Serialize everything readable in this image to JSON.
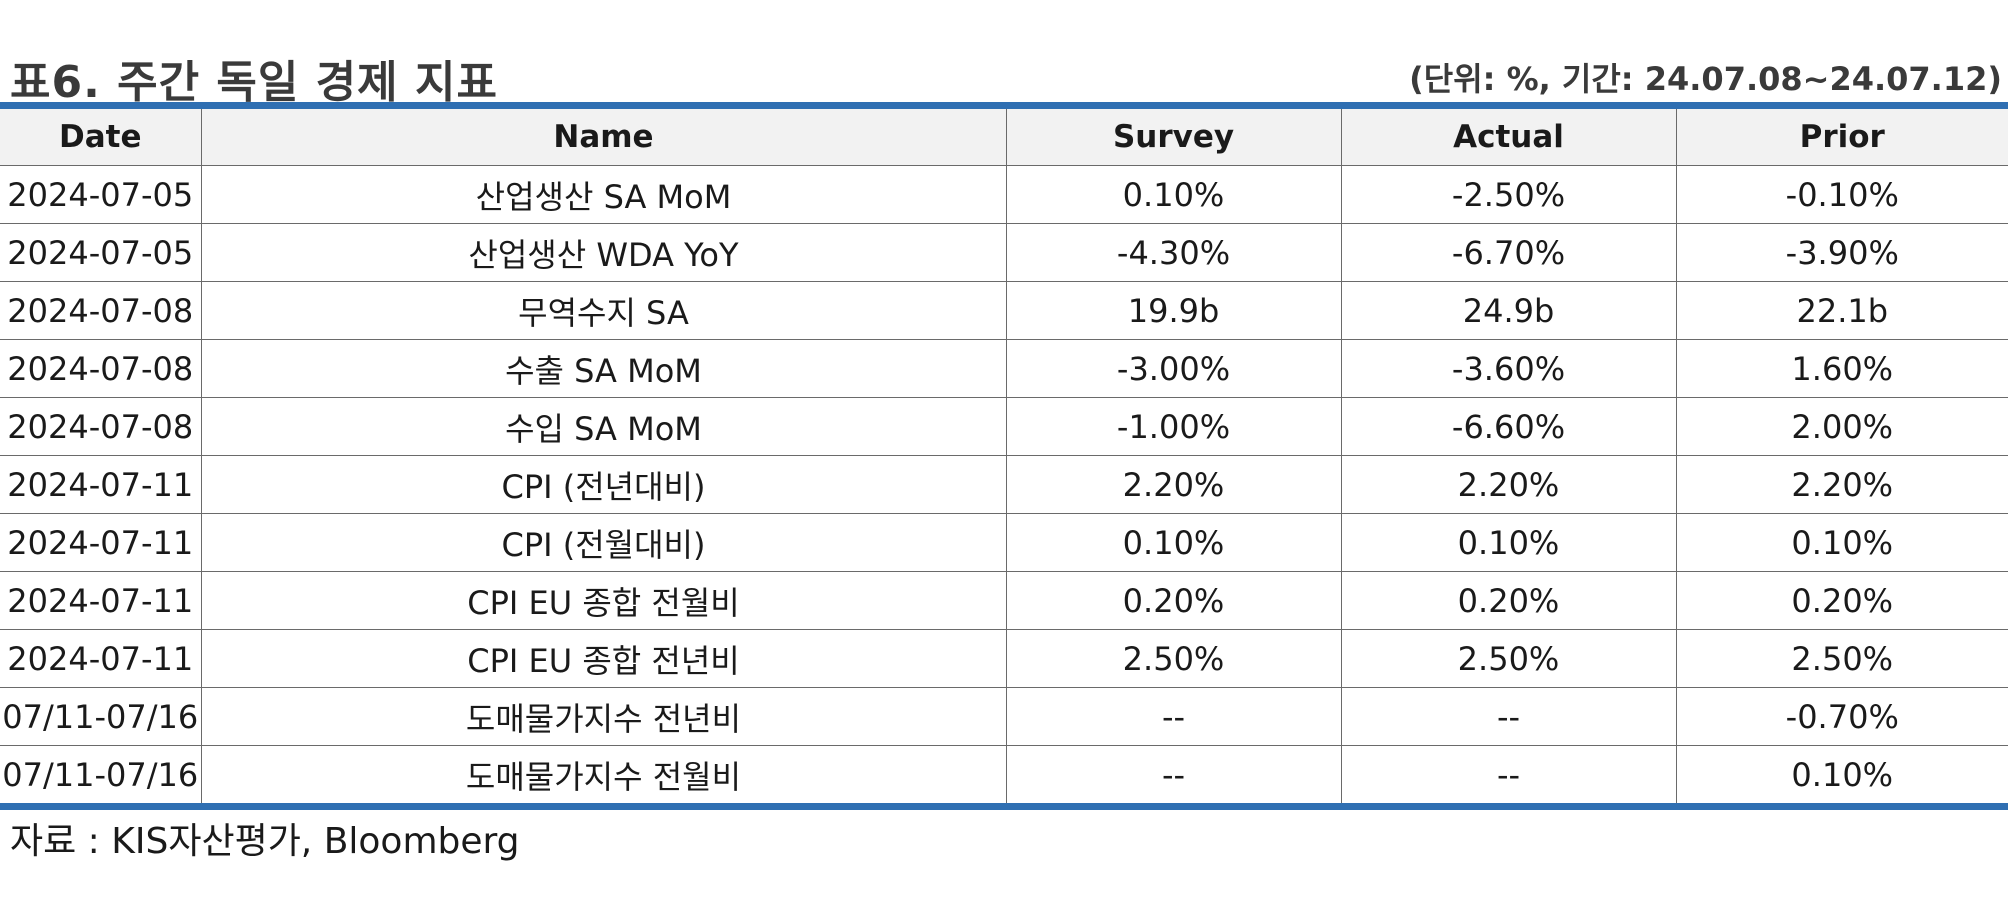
{
  "header": {
    "title": "표6. 주간 독일 경제 지표",
    "unit": "(단위: %, 기간: 24.07.08~24.07.12)"
  },
  "table": {
    "columns": [
      "Date",
      "Name",
      "Survey",
      "Actual",
      "Prior"
    ],
    "rows": [
      [
        "2024-07-05",
        "산업생산 SA MoM",
        "0.10%",
        "-2.50%",
        "-0.10%"
      ],
      [
        "2024-07-05",
        "산업생산 WDA YoY",
        "-4.30%",
        "-6.70%",
        "-3.90%"
      ],
      [
        "2024-07-08",
        "무역수지 SA",
        "19.9b",
        "24.9b",
        "22.1b"
      ],
      [
        "2024-07-08",
        "수출 SA MoM",
        "-3.00%",
        "-3.60%",
        "1.60%"
      ],
      [
        "2024-07-08",
        "수입 SA MoM",
        "-1.00%",
        "-6.60%",
        "2.00%"
      ],
      [
        "2024-07-11",
        "CPI (전년대비)",
        "2.20%",
        "2.20%",
        "2.20%"
      ],
      [
        "2024-07-11",
        "CPI (전월대비)",
        "0.10%",
        "0.10%",
        "0.10%"
      ],
      [
        "2024-07-11",
        "CPI EU 종합 전월비",
        "0.20%",
        "0.20%",
        "0.20%"
      ],
      [
        "2024-07-11",
        "CPI EU 종합 전년비",
        "2.50%",
        "2.50%",
        "2.50%"
      ],
      [
        "07/11-07/16",
        "도매물가지수 전년비",
        "--",
        "--",
        "-0.70%"
      ],
      [
        "07/11-07/16",
        "도매물가지수 전월비",
        "--",
        "--",
        "0.10%"
      ]
    ]
  },
  "footer": {
    "source": "자료 : KIS자산평가, Bloomberg"
  },
  "colors": {
    "rule": "#2f6fb2",
    "header_bg": "#f2f2f2",
    "grid": "#6a6a6a"
  }
}
